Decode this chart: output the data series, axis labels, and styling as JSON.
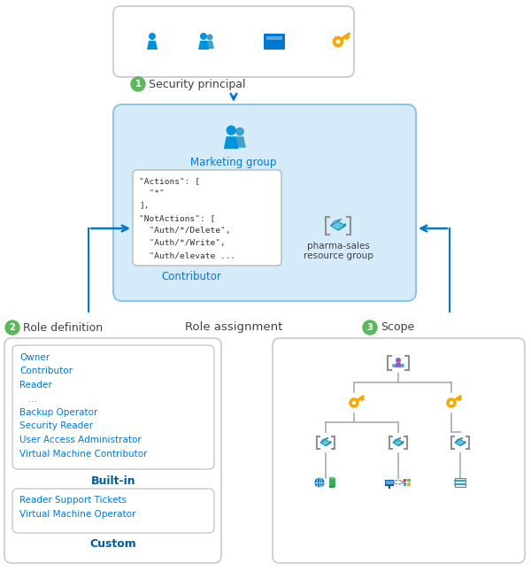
{
  "bg_color": "#ffffff",
  "title_color": "#404040",
  "blue_text": "#0078d4",
  "dark_blue": "#005a9e",
  "light_blue_bg": "#d6ebfa",
  "box_border": "#c0c0c0",
  "arrow_color": "#0078d4",
  "green_circle": "#5cb85c",
  "icon_blue": "#0094de",
  "icon_blue2": "#40b4e0",
  "icon_gold": "#f5a800",
  "icon_gray": "#888888",
  "section1_label": "Security principal",
  "section2_label": "Role definition",
  "section3_label": "Scope",
  "role_assignment_label": "Role assignment",
  "marketing_label": "Marketing group",
  "contributor_label": "Contributor",
  "pharma_label_1": "pharma-sales",
  "pharma_label_2": "resource group",
  "code_lines": [
    "\"Actions\": [",
    "  \"*\"",
    "],",
    "\"NotActions\": [",
    "  \"Auth/*/Delete\",",
    "  \"Auth/*/Write\",",
    "  \"Auth/elevate ..."
  ],
  "builtin_items": [
    "Owner",
    "Contributor",
    "Reader",
    "   ...",
    "Backup Operator",
    "Security Reader",
    "User Access Administrator",
    "Virtual Machine Contributor"
  ],
  "custom_items": [
    "Reader Support Tickets",
    "Virtual Machine Operator"
  ],
  "builtin_label": "Built-in",
  "custom_label": "Custom"
}
